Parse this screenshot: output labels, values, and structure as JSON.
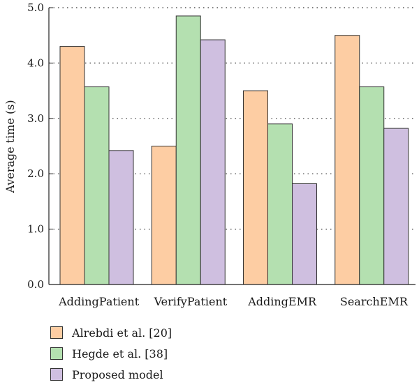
{
  "chart_data": {
    "type": "bar",
    "categories": [
      "AddingPatient",
      "VerifyPatient",
      "AddingEMR",
      "SearchEMR"
    ],
    "series": [
      {
        "name": "Alrebdi et al. [20]",
        "values": [
          4.3,
          2.5,
          3.5,
          4.5
        ],
        "color": "#fdcda3"
      },
      {
        "name": "Hegde et al. [38]",
        "values": [
          3.57,
          4.85,
          2.9,
          3.57
        ],
        "color": "#b4e0b0"
      },
      {
        "name": "Proposed model",
        "values": [
          2.42,
          4.42,
          1.82,
          2.82
        ],
        "color": "#cfbfe0"
      }
    ],
    "ylabel": "Average time (s)",
    "ylim": [
      0,
      5
    ],
    "yticks": [
      "0.0",
      "1.0",
      "2.0",
      "3.0",
      "4.0",
      "5.0"
    ],
    "grid": "horizontal dotted",
    "legend_position": "bottom-left"
  }
}
